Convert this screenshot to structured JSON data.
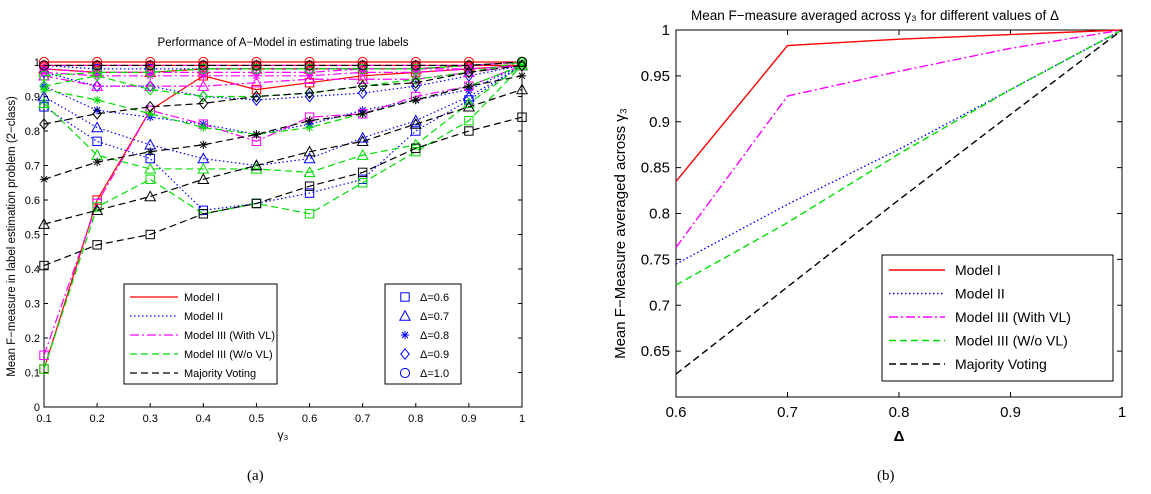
{
  "captions": {
    "a": "(a)",
    "b": "(b)"
  },
  "chart_data": [
    {
      "type": "line",
      "title": "Performance of A−Model in estimating true labels",
      "xlabel": "γ₃",
      "ylabel": "Mean F−measure in label estimation problem (2−class)",
      "xlim": [
        0.1,
        1
      ],
      "ylim": [
        0,
        1
      ],
      "x": [
        0.1,
        0.2,
        0.3,
        0.4,
        0.5,
        0.6,
        0.7,
        0.8,
        0.9,
        1.0
      ],
      "x_ticks": [
        "0.1",
        "0.2",
        "0.3",
        "0.4",
        "0.5",
        "0.6",
        "0.7",
        "0.8",
        "0.9",
        "1"
      ],
      "y_ticks": [
        "0",
        "0.1",
        "0.2",
        "0.3",
        "0.4",
        "0.5",
        "0.6",
        "0.7",
        "0.8",
        "0.9",
        "1"
      ],
      "grid": false,
      "legend_placement": "bottom-center",
      "legend_models": [
        {
          "name": "Model I",
          "color": "#ff0000",
          "dash": "solid"
        },
        {
          "name": "Model II",
          "color": "#0000ff",
          "dash": "dotted"
        },
        {
          "name": "Model III (With VL)",
          "color": "#ff00ff",
          "dash": "dashdot"
        },
        {
          "name": "Model III (W/o VL)",
          "color": "#00dd00",
          "dash": "dashed"
        },
        {
          "name": "Majority Voting",
          "color": "#000000",
          "dash": "dashed"
        }
      ],
      "legend_markers": [
        {
          "label": "Δ=0.6",
          "marker": "square"
        },
        {
          "label": "Δ=0.7",
          "marker": "triangle"
        },
        {
          "label": "Δ=0.8",
          "marker": "star"
        },
        {
          "label": "Δ=0.9",
          "marker": "diamond"
        },
        {
          "label": "Δ=1.0",
          "marker": "circle"
        }
      ],
      "series": [
        {
          "model": "Model I",
          "marker": "square",
          "values": [
            0.11,
            0.6,
            0.86,
            0.96,
            0.92,
            0.94,
            0.96,
            0.97,
            0.98,
            0.99
          ]
        },
        {
          "model": "Model I",
          "marker": "triangle",
          "values": [
            0.98,
            0.97,
            0.97,
            0.98,
            0.98,
            0.98,
            0.98,
            0.98,
            0.99,
            0.99
          ]
        },
        {
          "model": "Model I",
          "marker": "star",
          "values": [
            0.99,
            0.99,
            0.99,
            0.99,
            0.99,
            0.99,
            0.99,
            0.99,
            0.99,
            0.99
          ]
        },
        {
          "model": "Model I",
          "marker": "diamond",
          "values": [
            0.99,
            0.99,
            0.99,
            0.99,
            0.99,
            0.99,
            0.99,
            0.99,
            0.99,
            0.99
          ]
        },
        {
          "model": "Model I",
          "marker": "circle",
          "values": [
            1.0,
            1.0,
            1.0,
            1.0,
            1.0,
            1.0,
            1.0,
            1.0,
            1.0,
            1.0
          ]
        },
        {
          "model": "Model II",
          "marker": "square",
          "values": [
            0.87,
            0.77,
            0.72,
            0.57,
            0.59,
            0.62,
            0.66,
            0.8,
            0.89,
            0.99
          ]
        },
        {
          "model": "Model II",
          "marker": "triangle",
          "values": [
            0.9,
            0.81,
            0.76,
            0.72,
            0.7,
            0.72,
            0.78,
            0.83,
            0.9,
            0.99
          ]
        },
        {
          "model": "Model II",
          "marker": "star",
          "values": [
            0.93,
            0.86,
            0.84,
            0.82,
            0.79,
            0.82,
            0.86,
            0.89,
            0.92,
            0.99
          ]
        },
        {
          "model": "Model II",
          "marker": "diamond",
          "values": [
            0.97,
            0.93,
            0.93,
            0.9,
            0.89,
            0.9,
            0.91,
            0.93,
            0.96,
            0.99
          ]
        },
        {
          "model": "Model II",
          "marker": "circle",
          "values": [
            0.99,
            0.98,
            0.98,
            0.98,
            0.98,
            0.98,
            0.98,
            0.98,
            0.99,
            1.0
          ]
        },
        {
          "model": "Model III (With VL)",
          "marker": "square",
          "values": [
            0.15,
            0.59,
            0.86,
            0.82,
            0.77,
            0.84,
            0.85,
            0.9,
            0.93,
            0.99
          ]
        },
        {
          "model": "Model III (With VL)",
          "marker": "triangle",
          "values": [
            0.96,
            0.93,
            0.93,
            0.93,
            0.94,
            0.95,
            0.95,
            0.95,
            0.97,
            0.99
          ]
        },
        {
          "model": "Model III (With VL)",
          "marker": "star",
          "values": [
            0.97,
            0.96,
            0.96,
            0.96,
            0.96,
            0.96,
            0.97,
            0.97,
            0.98,
            0.99
          ]
        },
        {
          "model": "Model III (With VL)",
          "marker": "diamond",
          "values": [
            0.98,
            0.97,
            0.97,
            0.97,
            0.97,
            0.97,
            0.98,
            0.98,
            0.98,
            0.99
          ]
        },
        {
          "model": "Model III (With VL)",
          "marker": "circle",
          "values": [
            0.99,
            0.99,
            0.99,
            0.99,
            0.99,
            0.99,
            0.99,
            0.99,
            0.99,
            1.0
          ]
        },
        {
          "model": "Model III (W/o VL)",
          "marker": "square",
          "values": [
            0.11,
            0.58,
            0.66,
            0.56,
            0.59,
            0.56,
            0.65,
            0.74,
            0.83,
            0.99
          ]
        },
        {
          "model": "Model III (W/o VL)",
          "marker": "triangle",
          "values": [
            0.88,
            0.73,
            0.69,
            0.69,
            0.69,
            0.68,
            0.73,
            0.76,
            0.88,
            0.99
          ]
        },
        {
          "model": "Model III (W/o VL)",
          "marker": "star",
          "values": [
            0.92,
            0.89,
            0.85,
            0.81,
            0.79,
            0.81,
            0.85,
            0.89,
            0.93,
            0.99
          ]
        },
        {
          "model": "Model III (W/o VL)",
          "marker": "diamond",
          "values": [
            0.93,
            0.96,
            0.92,
            0.9,
            0.9,
            0.91,
            0.93,
            0.95,
            0.97,
            1.0
          ]
        },
        {
          "model": "Model III (W/o VL)",
          "marker": "circle",
          "values": [
            0.96,
            0.97,
            0.97,
            0.98,
            0.98,
            0.98,
            0.98,
            0.98,
            0.99,
            1.0
          ]
        },
        {
          "model": "Majority Voting",
          "marker": "square",
          "values": [
            0.41,
            0.47,
            0.5,
            0.56,
            0.59,
            0.64,
            0.68,
            0.75,
            0.8,
            0.84
          ]
        },
        {
          "model": "Majority Voting",
          "marker": "triangle",
          "values": [
            0.53,
            0.57,
            0.61,
            0.66,
            0.7,
            0.74,
            0.77,
            0.82,
            0.87,
            0.92
          ]
        },
        {
          "model": "Majority Voting",
          "marker": "star",
          "values": [
            0.66,
            0.71,
            0.74,
            0.76,
            0.79,
            0.83,
            0.85,
            0.89,
            0.93,
            0.96
          ]
        },
        {
          "model": "Majority Voting",
          "marker": "diamond",
          "values": [
            0.82,
            0.85,
            0.87,
            0.88,
            0.9,
            0.91,
            0.93,
            0.94,
            0.97,
            0.99
          ]
        },
        {
          "model": "Majority Voting",
          "marker": "circle",
          "values": [
            0.99,
            0.99,
            0.99,
            0.99,
            0.99,
            0.99,
            0.99,
            0.99,
            0.99,
            1.0
          ]
        }
      ]
    },
    {
      "type": "line",
      "title": "Mean F−measure averaged across γ₃ for different values of Δ",
      "xlabel": "Δ",
      "ylabel": "Mean F−Measure averaged across γ₃",
      "xlim": [
        0.6,
        1
      ],
      "ylim": [
        0.6,
        1
      ],
      "x": [
        0.6,
        0.7,
        0.8,
        0.9,
        1.0
      ],
      "x_ticks": [
        "0.6",
        "0.7",
        "0.8",
        "0.9",
        "1"
      ],
      "y_ticks": [
        "0.65",
        "0.7",
        "0.75",
        "0.8",
        "0.85",
        "0.9",
        "0.95",
        "1"
      ],
      "y_tick_values": [
        0.65,
        0.7,
        0.75,
        0.8,
        0.85,
        0.9,
        0.95,
        1.0
      ],
      "grid": false,
      "legend_placement": "bottom-right",
      "series": [
        {
          "name": "Model I",
          "color": "#ff0000",
          "dash": "solid",
          "values": [
            0.835,
            0.983,
            0.99,
            0.995,
            1.0
          ]
        },
        {
          "name": "Model II",
          "color": "#0000ff",
          "dash": "dotted",
          "values": [
            0.745,
            0.81,
            0.87,
            0.935,
            1.0
          ]
        },
        {
          "name": "Model III (With VL)",
          "color": "#ff00ff",
          "dash": "dashdot",
          "values": [
            0.763,
            0.928,
            0.955,
            0.98,
            1.0
          ]
        },
        {
          "name": "Model III (W/o VL)",
          "color": "#00dd00",
          "dash": "dashed",
          "values": [
            0.722,
            0.79,
            0.865,
            0.935,
            1.0
          ]
        },
        {
          "name": "Majority Voting",
          "color": "#000000",
          "dash": "dashed",
          "values": [
            0.625,
            0.72,
            0.815,
            0.908,
            1.0
          ]
        }
      ]
    }
  ]
}
